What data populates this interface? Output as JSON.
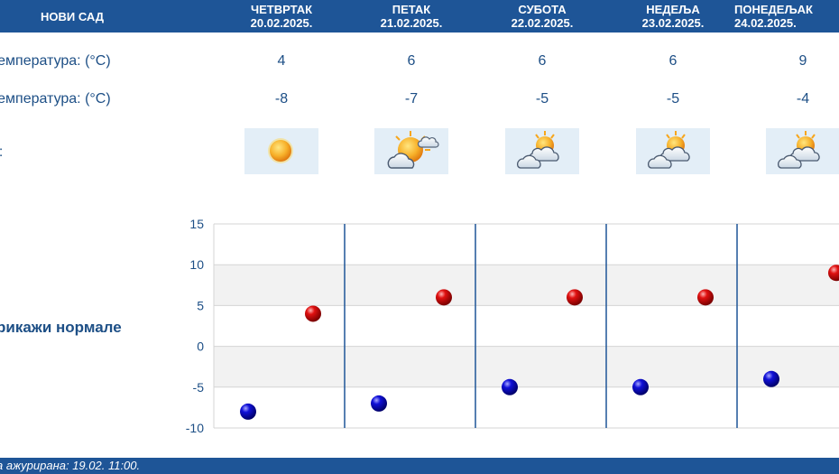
{
  "header": {
    "city": "НОВИ САД",
    "days": [
      {
        "name": "ЧЕТВРТАК",
        "date": "20.02.2025."
      },
      {
        "name": "ПЕТАК",
        "date": "21.02.2025."
      },
      {
        "name": "СУБОТА",
        "date": "22.02.2025."
      },
      {
        "name": "НЕДЕЉА",
        "date": "23.02.2025."
      },
      {
        "name": "ПОНЕДЕЉАК",
        "date": "24.02.2025."
      }
    ]
  },
  "rows": {
    "max_label": "температура: (°C)",
    "min_label": "температура: (°C)",
    "icon_label": "а:",
    "max_values": [
      "4",
      "6",
      "6",
      "6",
      "9"
    ],
    "min_values": [
      "-8",
      "-7",
      "-5",
      "-5",
      "-4"
    ],
    "icons": [
      "sun-icon",
      "partly-cloudy-icon",
      "sun-behind-clouds-icon",
      "sun-behind-clouds-icon",
      "sun-behind-clouds-icon"
    ]
  },
  "normals_link": "рикажи нормале",
  "footer": {
    "updated": "а ажурирана:  19.02. 11:00."
  },
  "colors": {
    "header_bg": "#1e5597",
    "text": "#1d4f86",
    "max_marker": "#cc0000",
    "min_marker": "#0000aa",
    "band": "#f2f2f2"
  },
  "chart_data": {
    "type": "scatter",
    "ylim": [
      -10,
      15
    ],
    "yticks": [
      "15",
      "10",
      "5",
      "0",
      "-5",
      "-10"
    ],
    "series": [
      {
        "values": [
          4,
          6,
          6,
          6,
          9
        ]
      },
      {
        "values": [
          -8,
          -7,
          -5,
          -5,
          -4
        ]
      }
    ]
  }
}
